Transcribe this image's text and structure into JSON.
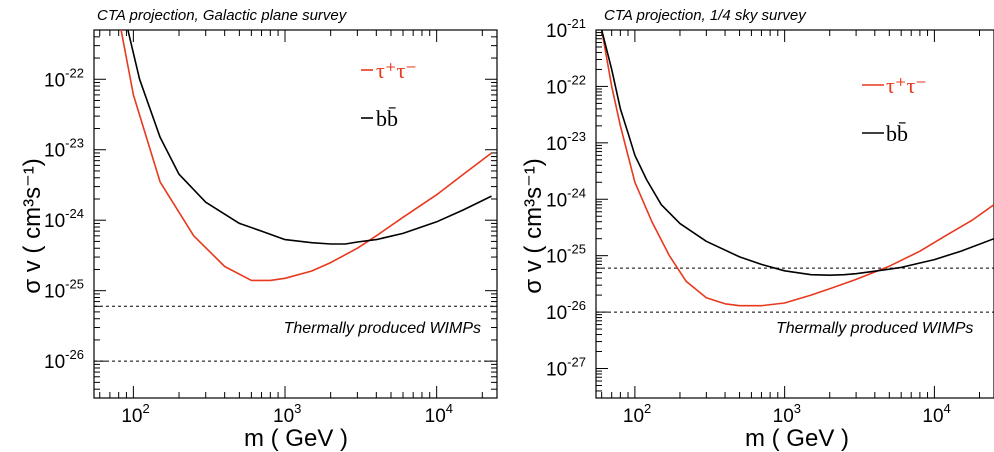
{
  "chart_data": [
    {
      "type": "line",
      "title": "CTA projection, Galactic plane survey",
      "xlabel": "m  ( GeV )",
      "ylabel": "σ v  ( cm³s⁻¹)",
      "xscale": "log",
      "yscale": "log",
      "xlim": [
        55,
        25000
      ],
      "ylim": [
        3e-27,
        5e-22
      ],
      "xticks": [
        {
          "value": 100,
          "mantissa": "10",
          "exp": "2"
        },
        {
          "value": 1000,
          "mantissa": "10",
          "exp": "3"
        },
        {
          "value": 10000,
          "mantissa": "10",
          "exp": "4"
        }
      ],
      "yticks": [
        {
          "value": 1e-26,
          "mantissa": "10",
          "exp": "-26"
        },
        {
          "value": 1e-25,
          "mantissa": "10",
          "exp": "-25"
        },
        {
          "value": 1e-24,
          "mantissa": "10",
          "exp": "-24"
        },
        {
          "value": 1e-23,
          "mantissa": "10",
          "exp": "-23"
        },
        {
          "value": 1e-22,
          "mantissa": "10",
          "exp": "-22"
        }
      ],
      "grid": false,
      "legend_position": "top-right",
      "series": [
        {
          "name": "τ⁺τ⁻",
          "color": "#e8391e",
          "x": [
            83,
            100,
            150,
            250,
            400,
            600,
            800,
            1000,
            1500,
            2000,
            3000,
            4000,
            6000,
            10000,
            15000,
            23000
          ],
          "y": [
            5e-22,
            6e-23,
            3.5e-24,
            6e-25,
            2.2e-25,
            1.4e-25,
            1.4e-25,
            1.5e-25,
            1.9e-25,
            2.5e-25,
            4e-25,
            6e-25,
            1.1e-24,
            2.3e-24,
            4.5e-24,
            9e-24
          ]
        },
        {
          "name": "bb̄",
          "color": "#000000",
          "x": [
            92,
            110,
            150,
            200,
            300,
            500,
            700,
            1000,
            1500,
            2000,
            2500,
            3000,
            4000,
            6000,
            10000,
            15000,
            23000
          ],
          "y": [
            5e-22,
            1e-22,
            1.5e-23,
            4.5e-24,
            1.8e-24,
            9e-25,
            7e-25,
            5.3e-25,
            4.8e-25,
            4.6e-25,
            4.6e-25,
            4.9e-25,
            5.3e-25,
            6.5e-25,
            9.5e-25,
            1.4e-24,
            2.2e-24
          ]
        }
      ],
      "reference_lines": [
        {
          "y": 6e-26
        },
        {
          "y": 1e-26
        }
      ],
      "annotation": "Thermally produced WIMPs"
    },
    {
      "type": "line",
      "title": "CTA projection, 1/4 sky survey",
      "xlabel": "m  ( GeV )",
      "ylabel": "σ v  ( cm³s⁻¹)",
      "xscale": "log",
      "yscale": "log",
      "xlim": [
        55,
        25000
      ],
      "ylim": [
        3e-28,
        1e-21
      ],
      "xticks": [
        {
          "value": 100,
          "mantissa": "10",
          "exp": "2"
        },
        {
          "value": 1000,
          "mantissa": "10",
          "exp": "3"
        },
        {
          "value": 10000,
          "mantissa": "10",
          "exp": "4"
        }
      ],
      "yticks": [
        {
          "value": 1e-27,
          "mantissa": "10",
          "exp": "-27"
        },
        {
          "value": 1e-26,
          "mantissa": "10",
          "exp": "-26"
        },
        {
          "value": 1e-25,
          "mantissa": "10",
          "exp": "-25"
        },
        {
          "value": 1e-24,
          "mantissa": "10",
          "exp": "-24"
        },
        {
          "value": 1e-23,
          "mantissa": "10",
          "exp": "-23"
        },
        {
          "value": 1e-22,
          "mantissa": "10",
          "exp": "-22"
        },
        {
          "value": 1e-21,
          "mantissa": "10",
          "exp": "-21"
        }
      ],
      "grid": false,
      "legend_position": "top-right",
      "series": [
        {
          "name": "τ⁺τ⁻",
          "color": "#e8391e",
          "x": [
            60,
            70,
            80,
            100,
            130,
            170,
            220,
            300,
            400,
            500,
            700,
            1000,
            1500,
            2000,
            3000,
            5000,
            8000,
            12000,
            18000,
            25000
          ],
          "y": [
            1e-21,
            1e-22,
            2e-23,
            2e-24,
            4e-25,
            1e-25,
            3.5e-26,
            1.8e-26,
            1.4e-26,
            1.3e-26,
            1.3e-26,
            1.45e-26,
            2e-26,
            2.6e-26,
            3.8e-26,
            6.5e-26,
            1.2e-25,
            2.3e-25,
            4.3e-25,
            8e-25
          ]
        },
        {
          "name": "bb̄",
          "color": "#000000",
          "x": [
            60,
            70,
            80,
            90,
            100,
            120,
            150,
            200,
            300,
            500,
            700,
            1000,
            1500,
            2000,
            2500,
            3000,
            4000,
            6000,
            10000,
            15000,
            25000
          ],
          "y": [
            1e-21,
            2e-22,
            4e-23,
            1.5e-23,
            6e-24,
            2.2e-24,
            8e-25,
            3.7e-25,
            1.8e-25,
            9.5e-26,
            7e-26,
            5.4e-26,
            4.6e-26,
            4.5e-26,
            4.6e-26,
            4.8e-26,
            5.3e-26,
            6.2e-26,
            8.5e-26,
            1.2e-25,
            2e-25
          ]
        }
      ],
      "reference_lines": [
        {
          "y": 6e-26
        },
        {
          "y": 1e-26
        }
      ],
      "annotation": "Thermally produced WIMPs"
    }
  ]
}
